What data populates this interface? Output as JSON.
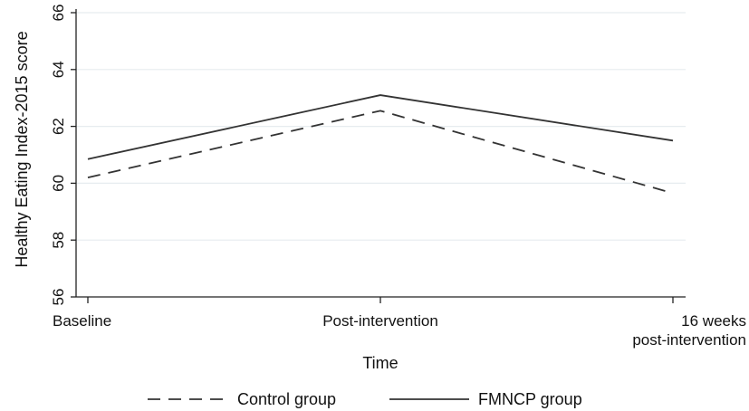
{
  "chart_data": {
    "type": "line",
    "title": "",
    "xlabel": "Time",
    "ylabel": "Healthy Eating Index-2015 score",
    "categories": [
      [
        "Baseline"
      ],
      [
        "Post-intervention"
      ],
      [
        "16 weeks",
        "post-intervention"
      ]
    ],
    "ylim": [
      56,
      66
    ],
    "yticks": [
      56,
      58,
      60,
      62,
      64,
      66
    ],
    "grid": "horizontal",
    "legend": "bottom",
    "series": [
      {
        "name": "Control group",
        "values": [
          60.2,
          62.55,
          59.65
        ],
        "style": "dashed",
        "color": "#333333"
      },
      {
        "name": "FMNCP group",
        "values": [
          60.85,
          63.1,
          61.5
        ],
        "style": "solid",
        "color": "#333333"
      }
    ]
  }
}
